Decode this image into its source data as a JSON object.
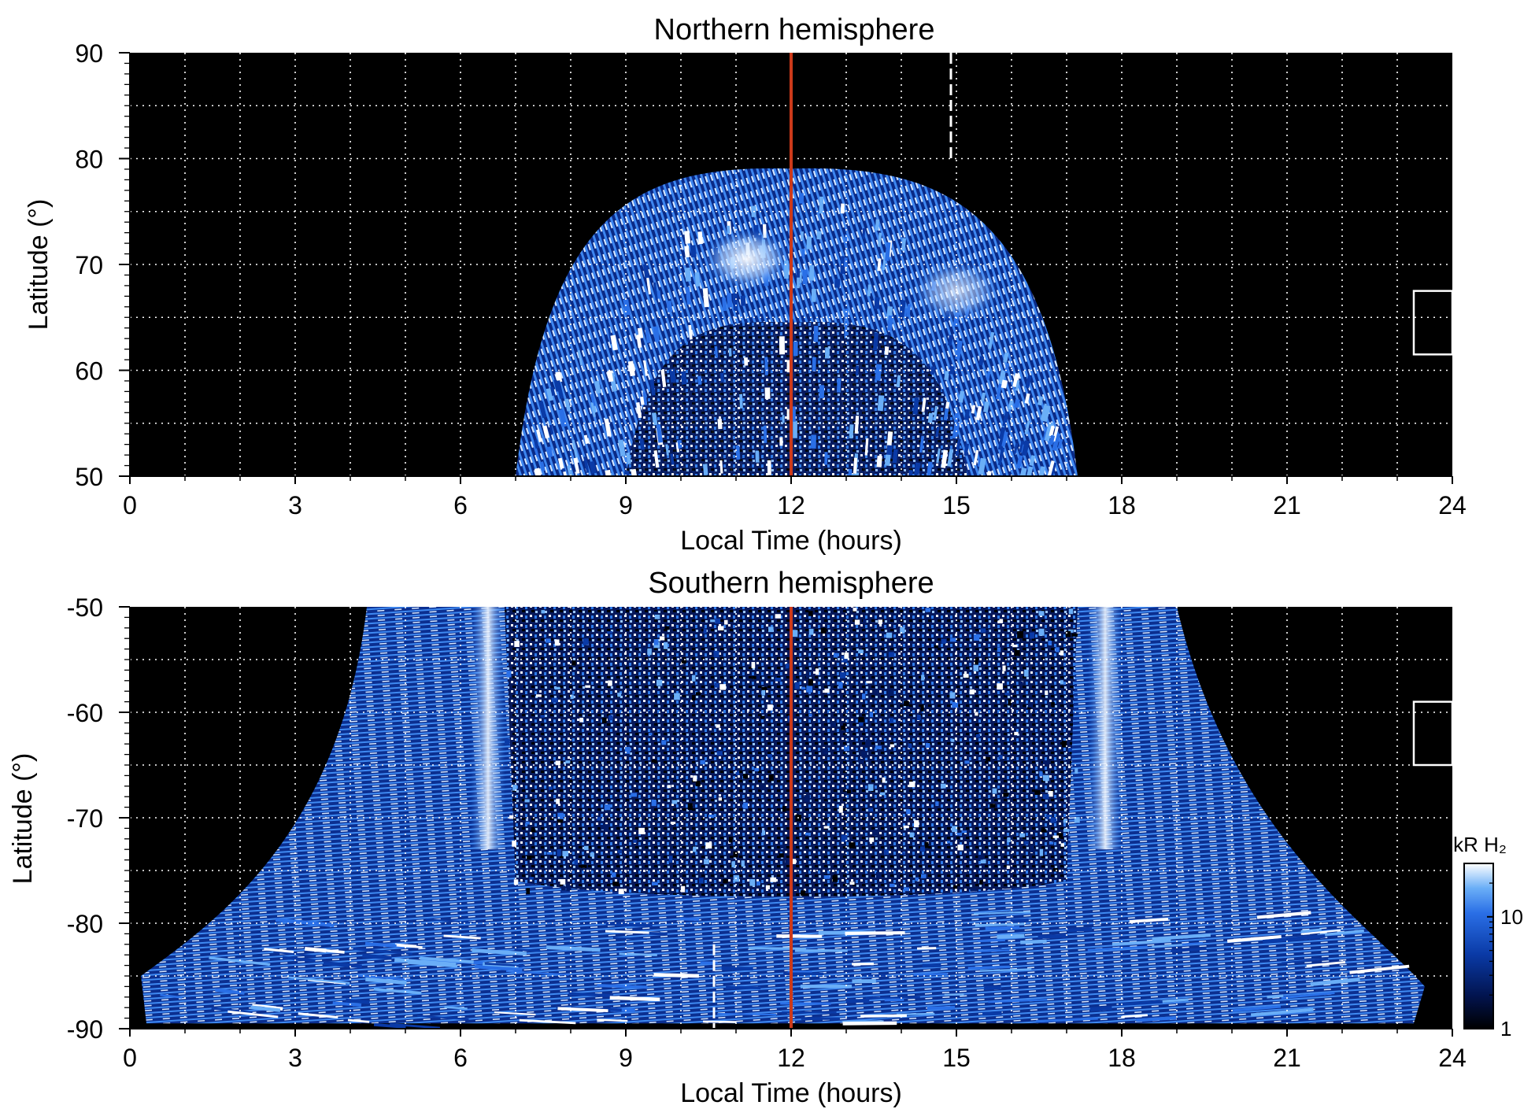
{
  "chart_data": [
    {
      "type": "heatmap",
      "title": "Northern hemisphere",
      "xlabel": "Local Time (hours)",
      "ylabel": "Latitude (°)",
      "xlim": [
        0,
        24
      ],
      "ylim": [
        50,
        90
      ],
      "xticks": [
        "0",
        "3",
        "6",
        "9",
        "12",
        "15",
        "18",
        "21",
        "24"
      ],
      "yticks": [
        "50",
        "60",
        "70",
        "80",
        "90"
      ],
      "grid": true,
      "background": "#000000",
      "marker_line": {
        "x": 12,
        "color": "#cc3a1a"
      },
      "dashed_line": {
        "x": 14.9,
        "y_from": 80,
        "y_to": 90
      },
      "emission_region": {
        "lt_start": 7.0,
        "lt_end": 17.2,
        "lat_peak": 79.5,
        "lat_base": 50
      },
      "bright_spots": [
        {
          "lt": 11.2,
          "lat": 70.5,
          "intensity": 1.0
        },
        {
          "lt": 15.0,
          "lat": 67.5,
          "intensity": 0.75
        }
      ],
      "inset_box": {
        "lt_from": 23.3,
        "lt_to": 24,
        "lat_from": 61.5,
        "lat_to": 67.5
      }
    },
    {
      "type": "heatmap",
      "title": "Southern hemisphere",
      "xlabel": "Local Time (hours)",
      "ylabel": "Latitude (°)",
      "xlim": [
        0,
        24
      ],
      "ylim": [
        -90,
        -50
      ],
      "xticks": [
        "0",
        "3",
        "6",
        "9",
        "12",
        "15",
        "18",
        "21",
        "24"
      ],
      "yticks": [
        "-50",
        "-60",
        "-70",
        "-80",
        "-90"
      ],
      "grid": true,
      "background": "#000000",
      "marker_line": {
        "x": 12,
        "color": "#cc3a1a"
      },
      "dashed_line": {
        "x": 10.6,
        "y_from": -90,
        "y_to": -82
      },
      "emission_region": {
        "lt_start": 0.2,
        "lt_end": 23.5,
        "lat_top": -50
      },
      "bright_bands": [
        {
          "lt": 6.5,
          "lat_from": -50,
          "lat_to": -73
        },
        {
          "lt": 17.7,
          "lat_from": -50,
          "lat_to": -73
        }
      ],
      "inset_box": {
        "lt_from": 23.3,
        "lt_to": 24,
        "lat_from": -65,
        "lat_to": -59
      }
    }
  ],
  "colorbar": {
    "label": "kR H₂",
    "scale": "log",
    "range": [
      1,
      30
    ],
    "ticks": [
      "10",
      "1"
    ],
    "colors": [
      "#000000",
      "#02144f",
      "#0a3aa6",
      "#2a6fe6",
      "#6aaef7",
      "#ffffff"
    ]
  }
}
